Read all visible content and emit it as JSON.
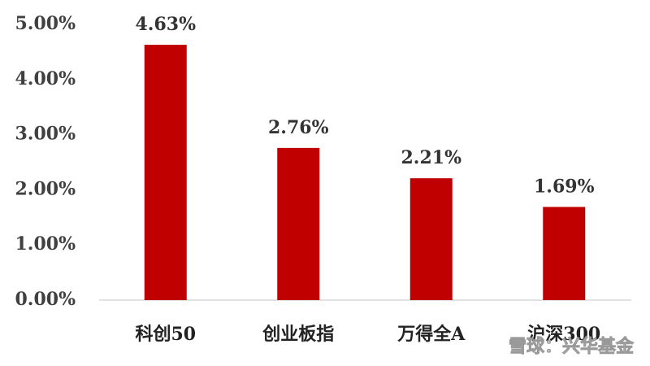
{
  "chart_data": {
    "type": "bar",
    "categories": [
      "科创50",
      "创业板指",
      "万得全A",
      "沪深300"
    ],
    "values": [
      4.63,
      2.76,
      2.21,
      1.69
    ],
    "value_labels": [
      "4.63%",
      "2.76%",
      "2.21%",
      "1.69%"
    ],
    "color": "#c00000",
    "ylim": [
      0,
      5
    ],
    "yticks": [
      {
        "value": 0,
        "label": "0.00%"
      },
      {
        "value": 1,
        "label": "1.00%"
      },
      {
        "value": 2,
        "label": "2.00%"
      },
      {
        "value": 3,
        "label": "3.00%"
      },
      {
        "value": 4,
        "label": "4.00%"
      },
      {
        "value": 5,
        "label": "5.00%"
      }
    ],
    "grid": false,
    "watermark": "雪球：兴华基金"
  }
}
